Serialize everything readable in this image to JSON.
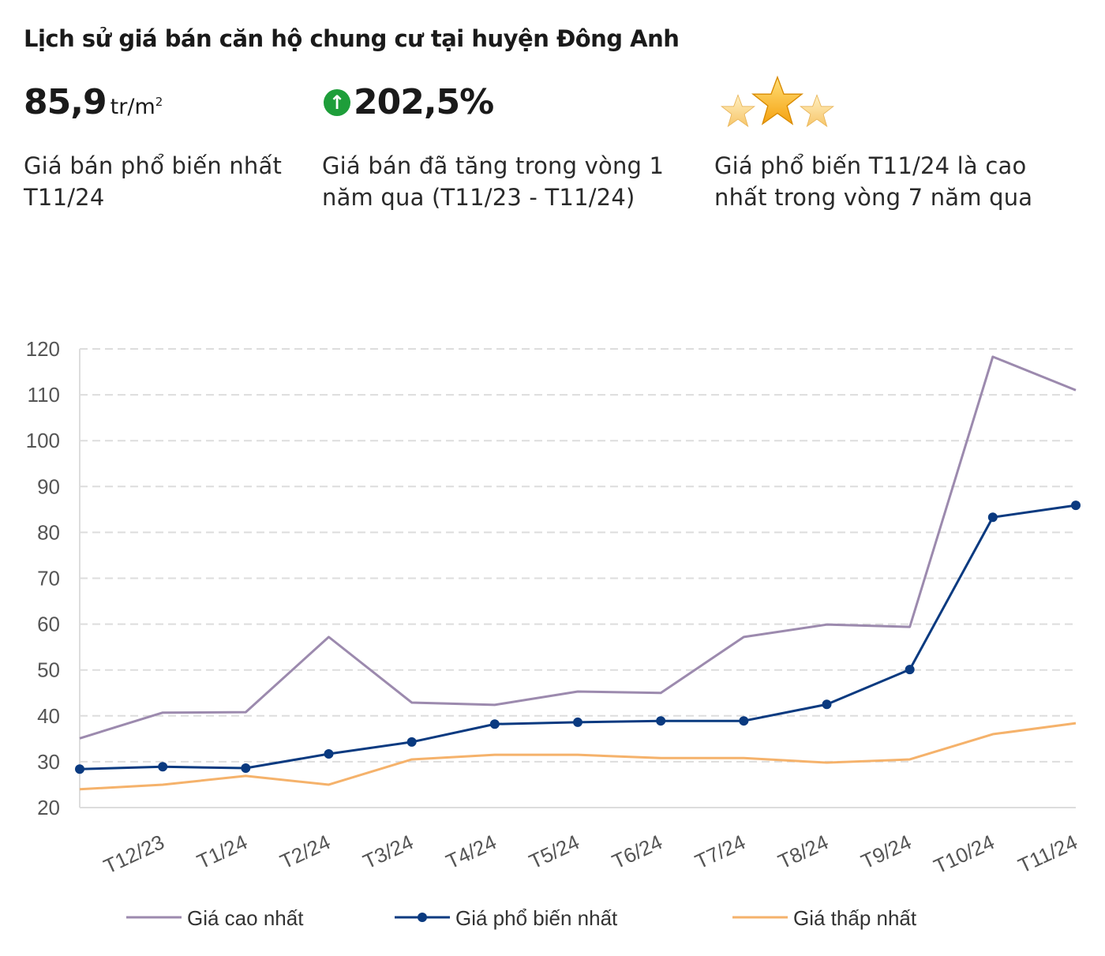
{
  "header": {
    "title": "Lịch sử giá bán căn hộ chung cư tại huyện Đông Anh",
    "stat1": {
      "value": "85,9",
      "unit": "tr/m",
      "unit_sup": "2",
      "desc_line1": "Giá bán phổ biến nhất",
      "desc_line2": "T11/24"
    },
    "stat2": {
      "icon": "arrow-up-circle-icon",
      "value": "202,5%",
      "desc_line1": "Giá bán đã tăng trong vòng 1",
      "desc_line2": "năm qua (T11/23 - T11/24)"
    },
    "stat3": {
      "icon": "three-stars-icon",
      "desc_line1": "Giá phổ biến T11/24 là cao",
      "desc_line2": "nhất trong vòng 7 năm qua"
    }
  },
  "colors": {
    "high": "#9c8aae",
    "common": "#0a3a80",
    "low": "#f5b26b",
    "grid": "#dddddd",
    "up": "#1e9e3a"
  },
  "chart_data": {
    "type": "line",
    "categories": [
      "",
      "T12/23",
      "T1/24",
      "T2/24",
      "T3/24",
      "T4/24",
      "T5/24",
      "T6/24",
      "T7/24",
      "T8/24",
      "T9/24",
      "T10/24",
      "T11/24"
    ],
    "yticks": [
      20,
      30,
      40,
      50,
      60,
      70,
      80,
      90,
      100,
      110,
      120
    ],
    "ylim": [
      20,
      120
    ],
    "grid": true,
    "legend_position": "bottom",
    "series": [
      {
        "name": "Giá cao nhất",
        "key": "high",
        "markers": false,
        "values": [
          35.1,
          40.7,
          40.8,
          57.2,
          42.9,
          42.4,
          45.3,
          45.0,
          57.2,
          59.9,
          59.4,
          118.3,
          111.0
        ]
      },
      {
        "name": "Giá phổ biến nhất",
        "key": "common",
        "markers": true,
        "values": [
          28.4,
          28.9,
          28.6,
          31.7,
          34.3,
          38.2,
          38.6,
          38.9,
          38.9,
          42.5,
          50.1,
          83.3,
          85.9
        ]
      },
      {
        "name": "Giá thấp nhất",
        "key": "low",
        "markers": false,
        "values": [
          24.0,
          25.0,
          26.9,
          25.0,
          30.5,
          31.5,
          31.5,
          30.8,
          30.8,
          29.8,
          30.5,
          36.0,
          38.4
        ]
      }
    ]
  }
}
